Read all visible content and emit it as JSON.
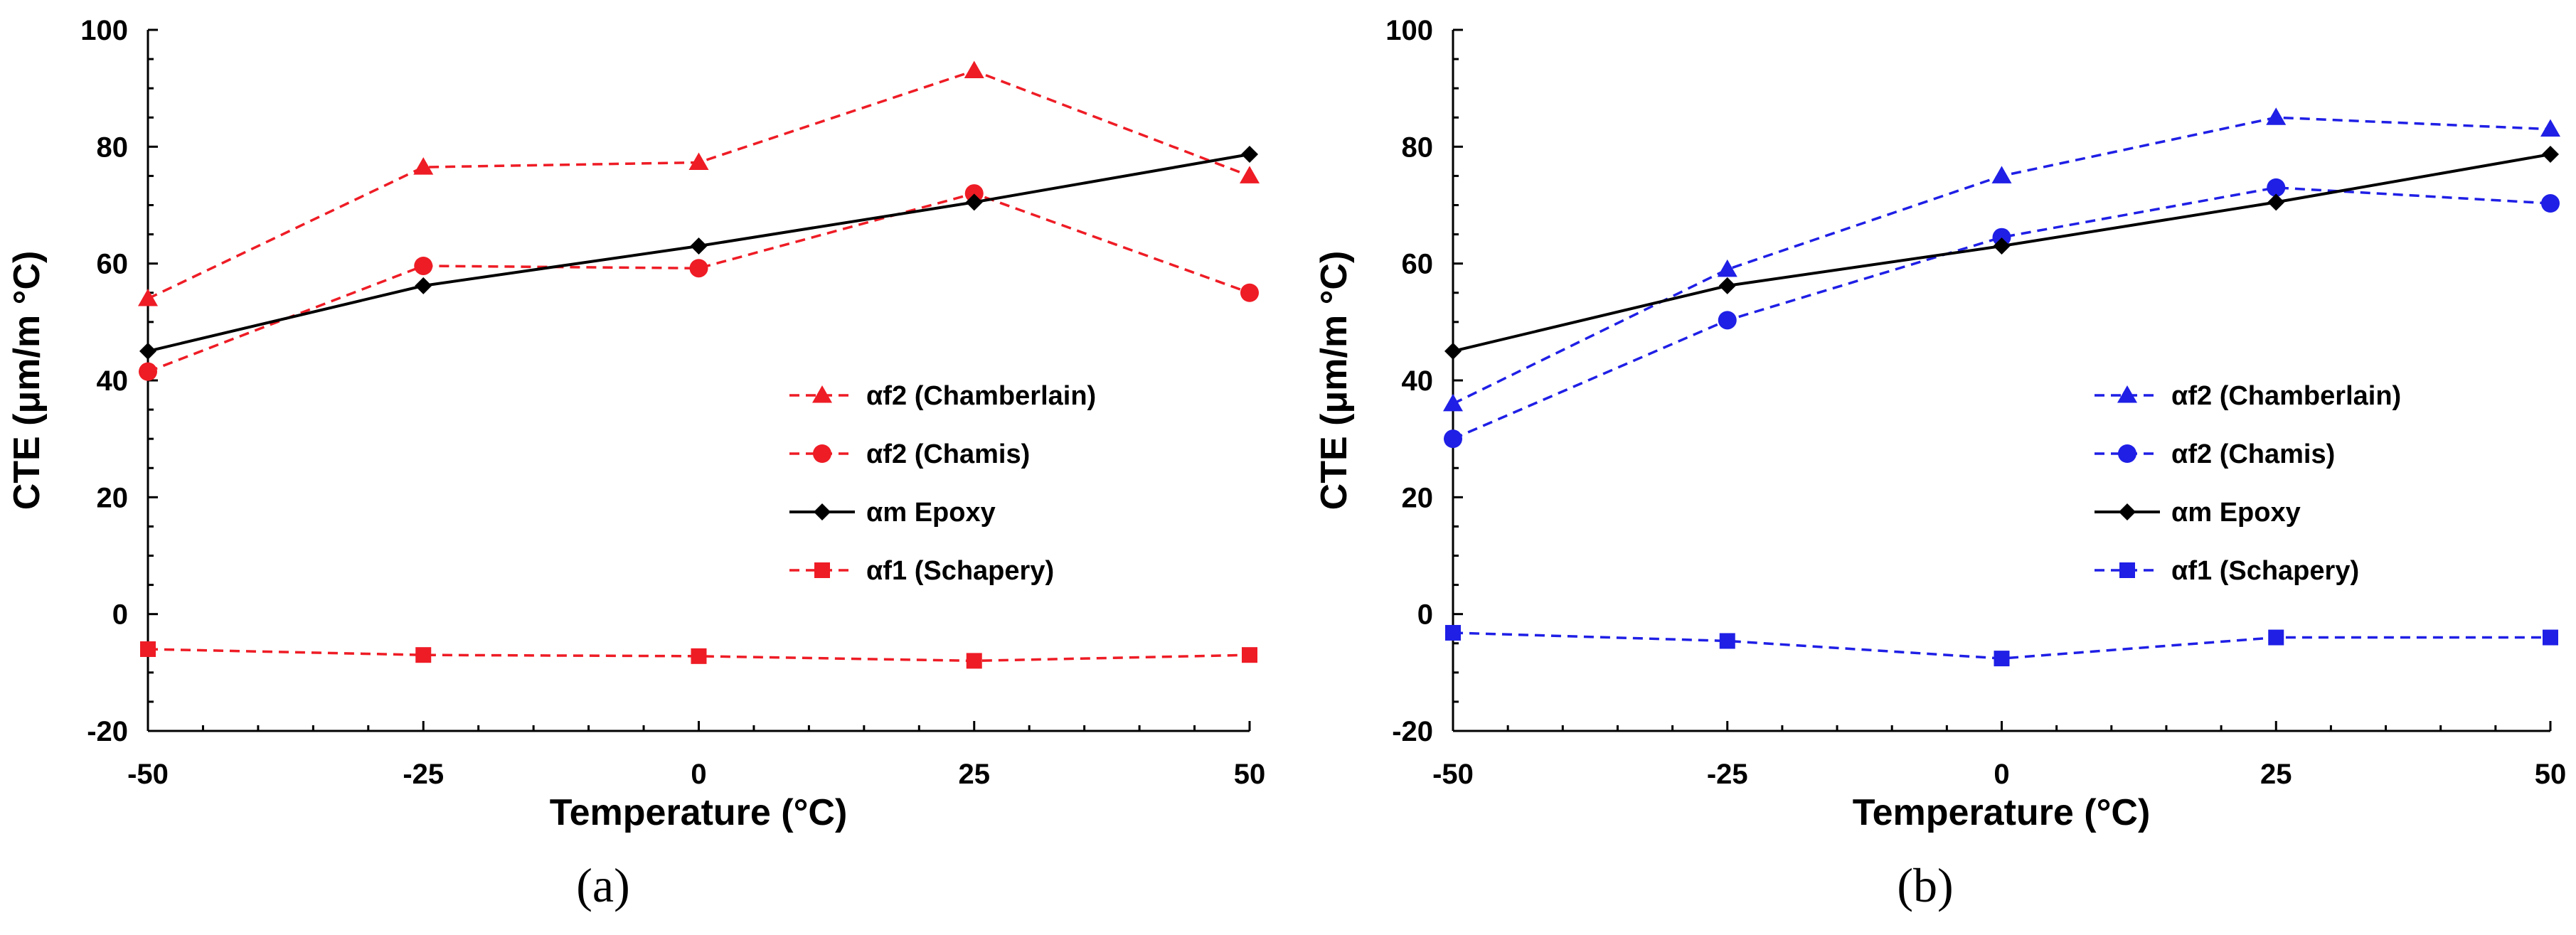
{
  "chart_data": [
    {
      "id": "a",
      "type": "line",
      "panel_label": "(a)",
      "xlabel": "Temperature (°C)",
      "ylabel": "CTE (μm/m °C)",
      "xlim": [
        -50,
        50
      ],
      "ylim": [
        -20,
        100
      ],
      "xticks": [
        -50,
        -25,
        0,
        25,
        50
      ],
      "yticks": [
        -20,
        0,
        20,
        40,
        60,
        80,
        100
      ],
      "legend_position": "center-right",
      "series": [
        {
          "name": "αf2 (Chamberlain)",
          "marker": "triangle",
          "dash": "dashed",
          "color": "#ee1c25",
          "x": [
            -50,
            -25,
            0,
            25,
            50
          ],
          "y": [
            54,
            76.5,
            77.3,
            93,
            75
          ]
        },
        {
          "name": "αf2 (Chamis)",
          "marker": "circle",
          "dash": "dashed",
          "color": "#ee1c25",
          "x": [
            -50,
            -25,
            0,
            25,
            50
          ],
          "y": [
            41.5,
            59.6,
            59.2,
            72,
            55
          ]
        },
        {
          "name": "αm Epoxy",
          "marker": "diamond",
          "dash": "solid",
          "color": "#000000",
          "x": [
            -50,
            -25,
            0,
            25,
            50
          ],
          "y": [
            45,
            56.2,
            63,
            70.5,
            78.7
          ]
        },
        {
          "name": "αf1 (Schapery)",
          "marker": "square",
          "dash": "dashed",
          "color": "#ee1c25",
          "x": [
            -50,
            -25,
            0,
            25,
            50
          ],
          "y": [
            -6,
            -7,
            -7.2,
            -8,
            -7
          ]
        }
      ]
    },
    {
      "id": "b",
      "type": "line",
      "panel_label": "(b)",
      "xlabel": "Temperature (°C)",
      "ylabel": "CTE (μm/m °C)",
      "xlim": [
        -50,
        50
      ],
      "ylim": [
        -20,
        100
      ],
      "xticks": [
        -50,
        -25,
        0,
        25,
        50
      ],
      "yticks": [
        -20,
        0,
        20,
        40,
        60,
        80,
        100
      ],
      "legend_position": "center-right",
      "series": [
        {
          "name": "αf2 (Chamberlain)",
          "marker": "triangle",
          "dash": "dashed",
          "color": "#1f1fe6",
          "x": [
            -50,
            -25,
            0,
            25,
            50
          ],
          "y": [
            36,
            59,
            75,
            85,
            83
          ]
        },
        {
          "name": "αf2 (Chamis)",
          "marker": "circle",
          "dash": "dashed",
          "color": "#1f1fe6",
          "x": [
            -50,
            -25,
            0,
            25,
            50
          ],
          "y": [
            30,
            50.3,
            64.5,
            73,
            70.3
          ]
        },
        {
          "name": "αm Epoxy",
          "marker": "diamond",
          "dash": "solid",
          "color": "#000000",
          "x": [
            -50,
            -25,
            0,
            25,
            50
          ],
          "y": [
            45,
            56.2,
            63,
            70.5,
            78.7
          ]
        },
        {
          "name": "αf1 (Schapery)",
          "marker": "square",
          "dash": "dashed",
          "color": "#1f1fe6",
          "x": [
            -50,
            -25,
            0,
            25,
            50
          ],
          "y": [
            -3.2,
            -4.6,
            -7.6,
            -4,
            -4
          ]
        }
      ]
    }
  ]
}
